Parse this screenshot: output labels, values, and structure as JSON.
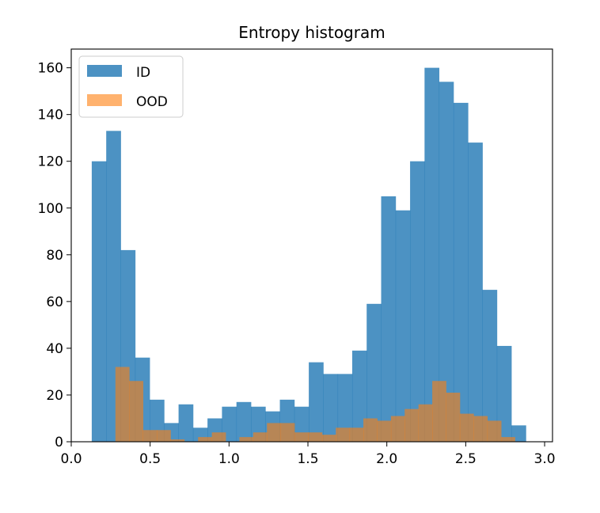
{
  "colors": {
    "id": "#1f77b4",
    "ood": "#ff7f0e",
    "axis": "#000000",
    "legend_border": "#cccccc"
  },
  "chart_data": {
    "type": "histogram",
    "title": "Entropy histogram",
    "xlabel": "",
    "ylabel": "",
    "xlim": [
      0.0,
      3.05
    ],
    "ylim": [
      0,
      168
    ],
    "xticks": [
      0.0,
      0.5,
      1.0,
      1.5,
      2.0,
      2.5,
      3.0
    ],
    "xtick_labels": [
      "0.0",
      "0.5",
      "1.0",
      "1.5",
      "2.0",
      "2.5",
      "3.0"
    ],
    "yticks": [
      0,
      20,
      40,
      60,
      80,
      100,
      120,
      140,
      160
    ],
    "ytick_labels": [
      "0",
      "20",
      "40",
      "60",
      "80",
      "100",
      "120",
      "140",
      "160"
    ],
    "grid": false,
    "legend_position": "top-left",
    "series": [
      {
        "name": "ID",
        "alpha": 0.8,
        "bin_start": 0.13,
        "bin_width": 0.0917,
        "values": [
          120,
          133,
          82,
          36,
          18,
          8,
          16,
          6,
          10,
          15,
          17,
          15,
          13,
          18,
          15,
          34,
          29,
          29,
          39,
          59,
          105,
          99,
          120,
          160,
          154,
          145,
          128,
          65,
          41,
          7
        ]
      },
      {
        "name": "OOD",
        "alpha": 0.6,
        "bin_start": 0.28,
        "bin_width": 0.0873,
        "values": [
          32,
          26,
          5,
          5,
          1,
          0,
          2,
          4,
          0,
          2,
          4,
          8,
          8,
          4,
          4,
          3,
          6,
          6,
          10,
          9,
          11,
          14,
          16,
          26,
          21,
          12,
          11,
          9,
          2
        ]
      }
    ]
  }
}
